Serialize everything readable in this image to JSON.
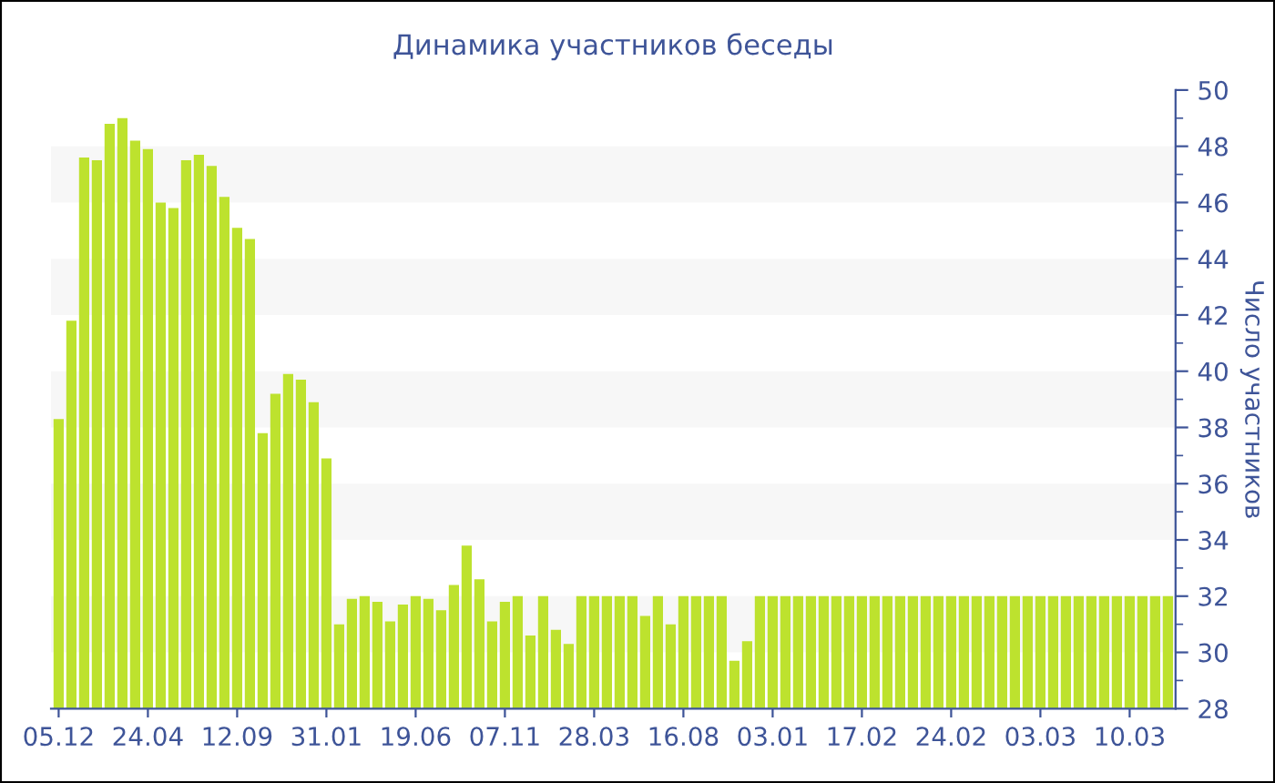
{
  "chart_data": {
    "type": "bar",
    "title": "Динамика участников беседы",
    "ylabel": "Число участников",
    "categories": [
      "05.12",
      null,
      null,
      null,
      null,
      null,
      null,
      "24.04",
      null,
      null,
      null,
      null,
      null,
      null,
      "12.09",
      null,
      null,
      null,
      null,
      null,
      null,
      "31.01",
      null,
      null,
      null,
      null,
      null,
      null,
      "19.06",
      null,
      null,
      null,
      null,
      null,
      null,
      "07.11",
      null,
      null,
      null,
      null,
      null,
      null,
      "28.03",
      null,
      null,
      null,
      null,
      null,
      null,
      "16.08",
      null,
      null,
      null,
      null,
      null,
      null,
      "03.01",
      null,
      null,
      null,
      null,
      null,
      null,
      "17.02",
      null,
      null,
      null,
      null,
      null,
      null,
      "24.02",
      null,
      null,
      null,
      null,
      null,
      null,
      "03.03",
      null,
      null,
      null,
      null,
      null,
      null,
      "10.03",
      null,
      null,
      null
    ],
    "values": [
      38.3,
      41.8,
      47.6,
      47.5,
      48.8,
      49.0,
      48.2,
      47.9,
      46.0,
      45.8,
      47.5,
      47.7,
      47.3,
      46.2,
      45.1,
      44.7,
      37.8,
      39.2,
      39.9,
      39.7,
      38.9,
      36.9,
      31.0,
      31.9,
      32.0,
      31.8,
      31.1,
      31.7,
      32.0,
      31.9,
      31.5,
      32.4,
      33.8,
      32.6,
      31.1,
      31.8,
      32.0,
      30.6,
      32.0,
      30.8,
      30.3,
      32,
      32,
      32,
      32,
      32,
      31.3,
      32,
      31.0,
      32,
      32,
      32,
      32,
      29.7,
      30.4,
      32,
      32,
      32,
      32,
      32,
      32,
      32,
      32,
      32,
      32,
      32,
      32,
      32,
      32,
      32,
      32,
      32,
      32,
      32,
      32,
      32,
      32,
      32,
      32,
      32,
      32,
      32,
      32,
      32,
      32,
      32,
      32,
      32
    ],
    "color": "#bde22e",
    "ylim": [
      28,
      50
    ],
    "yticks": [
      28,
      30,
      32,
      34,
      36,
      38,
      40,
      42,
      44,
      46,
      48,
      50
    ],
    "bands": [
      {
        "axis": "y",
        "from": 30,
        "to": 32,
        "color": "#f7f7f7"
      },
      {
        "axis": "y",
        "from": 34,
        "to": 36,
        "color": "#f7f7f7"
      },
      {
        "axis": "y",
        "from": 38,
        "to": 40,
        "color": "#f7f7f7"
      },
      {
        "axis": "y",
        "from": 42,
        "to": 44,
        "color": "#f7f7f7"
      },
      {
        "axis": "y",
        "from": 46,
        "to": 48,
        "color": "#f7f7f7"
      }
    ]
  }
}
